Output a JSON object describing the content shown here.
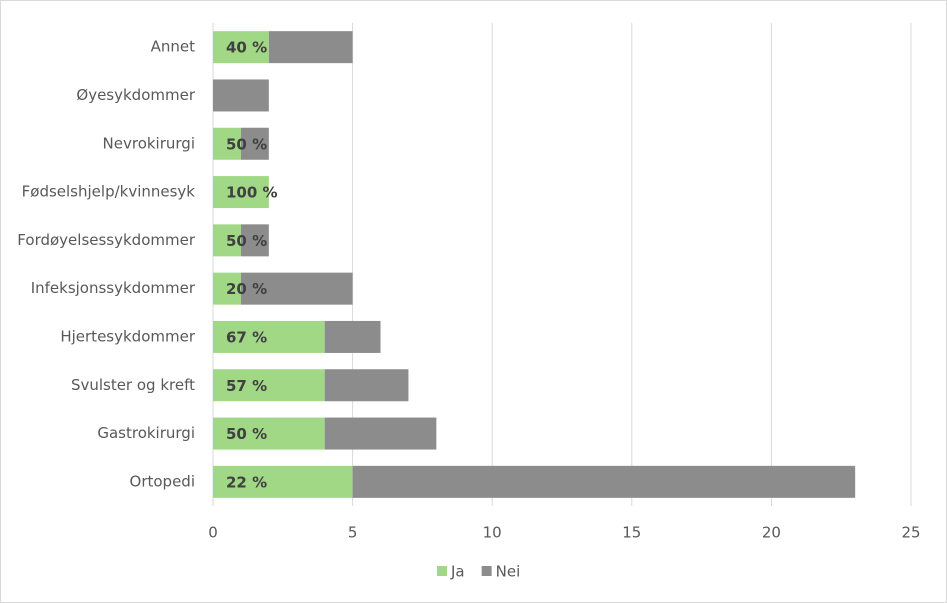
{
  "chart_data": {
    "type": "bar",
    "orientation": "horizontal",
    "stacked": true,
    "categories": [
      "Ortopedi",
      "Gastrokirurgi",
      "Svulster og kreft",
      "Hjertesykdommer",
      "Infeksjonssykdommer",
      "Fordøyelsessykdommer",
      "Fødselshjelp/kvinnesyk",
      "Nevrokirurgi",
      "Øyesykdommer",
      "Annet"
    ],
    "series": [
      {
        "name": "Ja",
        "color": "#a1d886",
        "values": [
          5,
          4,
          4,
          4,
          1,
          1,
          2,
          1,
          0,
          2
        ],
        "data_labels": [
          "22 %",
          "50 %",
          "57 %",
          "67 %",
          "20 %",
          "50 %",
          "100 %",
          "50 %",
          null,
          "40 %"
        ]
      },
      {
        "name": "Nei",
        "color": "#8c8c8c",
        "values": [
          18,
          4,
          3,
          2,
          4,
          1,
          0,
          1,
          2,
          3
        ]
      }
    ],
    "xlim": [
      0,
      25
    ],
    "xticks": [
      0,
      5,
      10,
      15,
      20,
      25
    ],
    "grid": true,
    "legend": "bottom"
  }
}
